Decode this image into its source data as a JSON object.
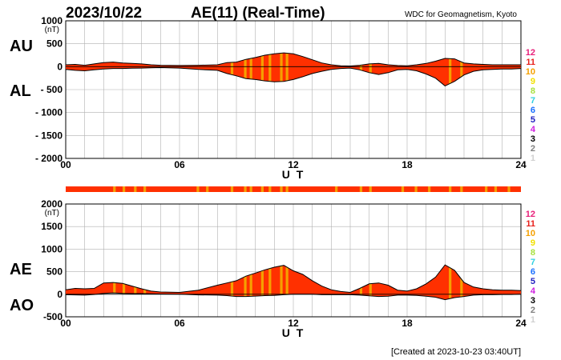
{
  "header": {
    "date": "2023/10/22",
    "title": "AE(11) (Real-Time)",
    "source": "WDC for Geomagnetism, Kyoto"
  },
  "footer": {
    "created": "[Created at 2023-10-23 03:40UT]"
  },
  "legend": {
    "items": [
      {
        "label": "12",
        "color": "#e8207a"
      },
      {
        "label": "11",
        "color": "#e8201c"
      },
      {
        "label": "10",
        "color": "#f5a000"
      },
      {
        "label": "9",
        "color": "#f2e000"
      },
      {
        "label": "8",
        "color": "#a8e040"
      },
      {
        "label": "7",
        "color": "#30d0e0"
      },
      {
        "label": "6",
        "color": "#1a70ff"
      },
      {
        "label": "5",
        "color": "#2020c0"
      },
      {
        "label": "4",
        "color": "#d020e0"
      },
      {
        "label": "3",
        "color": "#000000"
      },
      {
        "label": "2",
        "color": "#808080"
      },
      {
        "label": "1",
        "color": "#d0d0d0"
      }
    ]
  },
  "colors": {
    "fill": "#ff3000",
    "highlight": "#f5a000",
    "grid": "#b0b0b0",
    "line": "#000000"
  },
  "chart_data": [
    {
      "type": "area",
      "name": "AU/AL panel",
      "labels": {
        "upper": "AU",
        "lower": "AL"
      },
      "unit": "(nT)",
      "xlabel": "U T",
      "xlim": [
        0,
        24
      ],
      "ylim": [
        -2000,
        1000
      ],
      "xticks": [
        "00",
        "06",
        "12",
        "18",
        "24"
      ],
      "xtick_values": [
        0,
        6,
        12,
        18,
        24
      ],
      "ytick_labels": [
        "1000",
        "500",
        "0",
        "- 500",
        "- 1000",
        "- 1500",
        "- 2000"
      ],
      "ytick_values": [
        1000,
        500,
        0,
        -500,
        -1000,
        -1500,
        -2000
      ],
      "grid_step_hours": 1,
      "series": [
        {
          "name": "AU",
          "x": [
            0,
            0.5,
            1,
            1.5,
            2,
            2.5,
            3,
            3.5,
            4,
            4.5,
            5,
            6,
            7,
            8,
            8.5,
            9,
            9.5,
            10,
            10.5,
            11,
            11.5,
            12,
            12.5,
            13,
            13.5,
            14,
            14.5,
            15,
            15.5,
            16,
            16.5,
            17,
            17.5,
            18,
            18.5,
            19,
            19.5,
            20,
            20.5,
            21,
            21.5,
            22,
            22.5,
            23,
            23.5,
            24
          ],
          "values": [
            40,
            50,
            30,
            60,
            90,
            100,
            80,
            70,
            60,
            40,
            30,
            25,
            30,
            40,
            90,
            100,
            160,
            200,
            250,
            280,
            300,
            280,
            220,
            150,
            80,
            40,
            20,
            15,
            30,
            60,
            70,
            40,
            25,
            20,
            40,
            70,
            120,
            180,
            170,
            80,
            60,
            50,
            40,
            40,
            40,
            40
          ]
        },
        {
          "name": "AL",
          "x": [
            0,
            0.5,
            1,
            1.5,
            2,
            2.5,
            3,
            3.5,
            4,
            4.5,
            5,
            6,
            7,
            8,
            8.5,
            9,
            9.5,
            10,
            10.5,
            11,
            11.5,
            12,
            12.5,
            13,
            13.5,
            14,
            14.5,
            15,
            15.5,
            16,
            16.5,
            17,
            17.5,
            18,
            18.5,
            19,
            19.5,
            20,
            20.5,
            21,
            21.5,
            22,
            22.5,
            23,
            23.5,
            24
          ],
          "values": [
            -60,
            -80,
            -90,
            -70,
            -50,
            -40,
            -40,
            -35,
            -30,
            -25,
            -20,
            -30,
            -60,
            -80,
            -150,
            -200,
            -260,
            -280,
            -310,
            -330,
            -320,
            -280,
            -220,
            -150,
            -100,
            -60,
            -40,
            -30,
            -70,
            -130,
            -170,
            -130,
            -70,
            -60,
            -90,
            -160,
            -250,
            -420,
            -320,
            -180,
            -100,
            -70,
            -60,
            -50,
            -50,
            -40
          ]
        }
      ],
      "highlight_hours": [
        8.7,
        9.4,
        9.7,
        10.3,
        10.7,
        11.3,
        11.6,
        15.5,
        16,
        20.2,
        20.8
      ]
    },
    {
      "type": "area",
      "name": "AE/AO panel",
      "labels": {
        "upper": "AE",
        "lower": "AO"
      },
      "unit": "(nT)",
      "xlabel": "U T",
      "xlim": [
        0,
        24
      ],
      "ylim": [
        -500,
        2000
      ],
      "xticks": [
        "00",
        "06",
        "12",
        "18",
        "24"
      ],
      "xtick_values": [
        0,
        6,
        12,
        18,
        24
      ],
      "ytick_labels": [
        "2000",
        "1500",
        "1000",
        "500",
        "0",
        "-500"
      ],
      "ytick_values": [
        2000,
        1500,
        1000,
        500,
        0,
        -500
      ],
      "grid_step_hours": 1,
      "series": [
        {
          "name": "AE",
          "x": [
            0,
            0.5,
            1,
            1.5,
            2,
            2.5,
            3,
            3.5,
            4,
            4.5,
            5,
            6,
            7,
            8,
            8.5,
            9,
            9.5,
            10,
            10.5,
            11,
            11.5,
            12,
            12.5,
            13,
            13.5,
            14,
            14.5,
            15,
            15.5,
            16,
            16.5,
            17,
            17.5,
            18,
            18.5,
            19,
            19.5,
            20,
            20.5,
            21,
            21.5,
            22,
            22.5,
            23,
            23.5,
            24
          ],
          "values": [
            100,
            130,
            120,
            130,
            250,
            260,
            240,
            180,
            120,
            70,
            50,
            40,
            90,
            200,
            250,
            300,
            400,
            470,
            540,
            600,
            640,
            520,
            440,
            300,
            180,
            100,
            60,
            40,
            130,
            230,
            250,
            200,
            90,
            70,
            120,
            230,
            380,
            650,
            530,
            260,
            160,
            120,
            100,
            90,
            90,
            80
          ]
        },
        {
          "name": "AO",
          "x": [
            0,
            0.5,
            1,
            1.5,
            2,
            2.5,
            3,
            3.5,
            4,
            4.5,
            5,
            6,
            7,
            8,
            8.5,
            9,
            9.5,
            10,
            10.5,
            11,
            11.5,
            12,
            12.5,
            13,
            13.5,
            14,
            14.5,
            15,
            15.5,
            16,
            16.5,
            17,
            17.5,
            18,
            18.5,
            19,
            19.5,
            20,
            20.5,
            21,
            21.5,
            22,
            22.5,
            23,
            23.5,
            24
          ],
          "values": [
            -10,
            -15,
            -20,
            -5,
            20,
            30,
            20,
            15,
            15,
            10,
            5,
            0,
            -15,
            -20,
            -30,
            -50,
            -50,
            -40,
            -30,
            -25,
            -10,
            0,
            0,
            0,
            -10,
            -10,
            -10,
            -10,
            -20,
            -35,
            -50,
            -45,
            -20,
            -20,
            -25,
            -45,
            -65,
            -120,
            -75,
            -50,
            -20,
            -10,
            -10,
            -5,
            -5,
            0
          ]
        }
      ],
      "highlight_hours": [
        2.5,
        3,
        3.6,
        4.1,
        8.7,
        9.4,
        9.7,
        10.3,
        10.7,
        11.3,
        11.6,
        15.5,
        16,
        20.2,
        20.8
      ]
    }
  ],
  "coverage_bar": {
    "highlight_hours": [
      2.5,
      3,
      3.6,
      4.1,
      6.9,
      7.4,
      8.7,
      9.4,
      9.7,
      10.3,
      10.7,
      11.3,
      11.6,
      14.2,
      15.5,
      16,
      17.7,
      18.4,
      19.1,
      20.2,
      20.8,
      22.1,
      22.6,
      23.3
    ]
  }
}
